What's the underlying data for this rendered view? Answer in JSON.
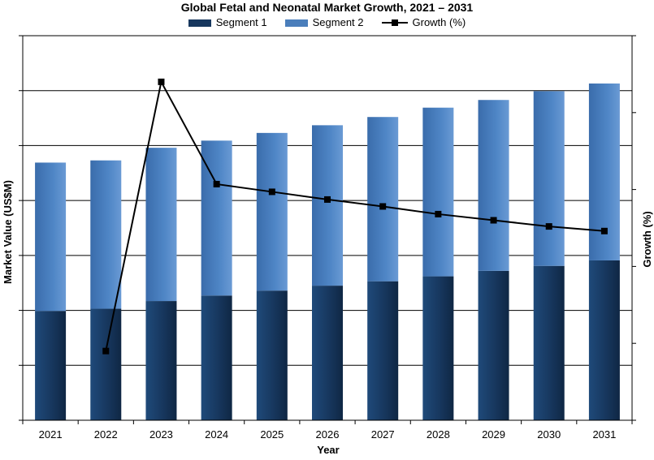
{
  "chart_data": {
    "type": "bar",
    "title": "Global Fetal and Neonatal Market Growth, 2021 – 2031",
    "xlabel": "Year",
    "ylabel": "Market Value (US$M)",
    "y2label": "Growth (%)",
    "legend_position": "top-center",
    "grid": true,
    "stacked": true,
    "categories": [
      "2021",
      "2022",
      "2023",
      "2024",
      "2025",
      "2026",
      "2027",
      "2028",
      "2029",
      "2030",
      "2031"
    ],
    "ylim": [
      0,
      7
    ],
    "y2lim": [
      0,
      5
    ],
    "series": [
      {
        "name": "Segment 1",
        "kind": "bar",
        "axis": "left",
        "color": "#17375e",
        "values": [
          1.99,
          2.03,
          2.17,
          2.27,
          2.36,
          2.45,
          2.53,
          2.62,
          2.72,
          2.81,
          2.91
        ]
      },
      {
        "name": "Segment 2",
        "kind": "bar",
        "axis": "left",
        "color": "#4a7ebb",
        "values": [
          2.7,
          2.7,
          2.79,
          2.82,
          2.87,
          2.92,
          2.99,
          3.07,
          3.11,
          3.18,
          3.22
        ]
      },
      {
        "name": "Growth (%)",
        "kind": "line",
        "axis": "right",
        "color": "#000000",
        "values": [
          null,
          0.9,
          4.4,
          3.07,
          2.97,
          2.87,
          2.78,
          2.68,
          2.6,
          2.52,
          2.46
        ]
      }
    ]
  }
}
